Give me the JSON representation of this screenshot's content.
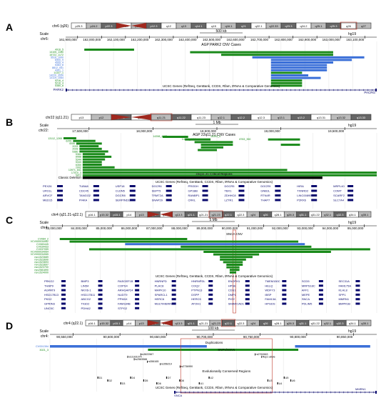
{
  "panels": [
    {
      "letter": "A",
      "ideogram": {
        "chrom_label": "chr6 (q26)",
        "bands": [
          "p25.3",
          "p24.2",
          "p22.3",
          "p21.33",
          "p21.1",
          "p12.3",
          "q12",
          "q13",
          "q14.1",
          "q15",
          "q16.1",
          "q21",
          "q22.1",
          "q22.33",
          "q23.3",
          "q24.2",
          "q25.1",
          "q25.3",
          "q26",
          "q27"
        ],
        "region_index": 18
      },
      "scale_text": "500 kb",
      "assembly": "hg19",
      "ticks": [
        "161,900,000",
        "162,000,000",
        "162,100,000",
        "162,200,000",
        "162,300,000",
        "162,400,000",
        "162,500,000",
        "162,600,000",
        "162,700,000",
        "162,800,000",
        "162,900,000",
        "163,000,000",
        "163,100,000"
      ],
      "track_title": "AGP PARK2 CNV Cases",
      "labels": [
        "4916_5",
        "14105_1180",
        "15722_1172",
        "5516_1000",
        "6300_9",
        "4555_4",
        "5383_8",
        "8812_051",
        "4301_1",
        "11337_1",
        "14220_3530",
        "13119_1064",
        "5216_4",
        "5216_4",
        "5380_8"
      ],
      "gene_track_title": "UCSC Genes (RefSeq, GenBank, CCDS, Rfam, tRNAs & Comparative Genomics)",
      "genes": [
        "PARK2",
        "PACRG"
      ]
    },
    {
      "letter": "B",
      "ideogram": {
        "chrom_label": "chr22 (q11.21)",
        "bands": [
          "p13",
          "p12",
          "p11.2",
          "q11.1",
          "q11.21",
          "q11.22",
          "q11.23",
          "q12.1",
          "q12.2",
          "q12.3",
          "q13.1",
          "q13.2",
          "q13.31",
          "q13.32",
          "q13.33"
        ],
        "region_index": 4
      },
      "scale_text": "1 Mb",
      "assembly": "hg19",
      "ticks": [
        "17,500,000",
        "18,000,000",
        "18,500,000",
        "19,000,000",
        "19,500,000"
      ],
      "track_title": "AGP 22q11.21 CNV Cases",
      "labels": [
        "13112_1265",
        "6255",
        "4006",
        "2033",
        "2028",
        "5380",
        "5384",
        "8088",
        "5344",
        "5343",
        "6350",
        "2002",
        "13971_841",
        "17010_3",
        "5012"
      ],
      "label_top": [
        "14398_4470",
        "14327_4410",
        "16393_5",
        "8763_350"
      ],
      "region_label": "22q11.21 Critical Regions",
      "classic_label": "Classic Deletion",
      "gene_track_title": "UCSC Genes (RefSeq, GenBank, CCDS, Rfam, tRNAs & Comparative Genomics)",
      "genes": [
        "PEX26",
        "TUBA8",
        "USP18",
        "DGCR6",
        "PRODH",
        "DGCR5",
        "DGCR9",
        "HIRA",
        "MRPL40",
        "UFD1L",
        "CDC45",
        "CLDN5",
        "SEPT5",
        "GP1BB",
        "TBX1",
        "GNB1L",
        "TXNRD2",
        "COMT",
        "ARVCF",
        "TANGO2",
        "DGCR8",
        "TRMT2A",
        "RANBP1",
        "ZDHHC8",
        "RTN4R",
        "LINC00895",
        "SCARF2",
        "MED15",
        "PI4KA",
        "SERPIND1",
        "SNAP29",
        "CRKL",
        "LZTR1",
        "THAP7",
        "P2RX6",
        "SLC7A4"
      ]
    },
    {
      "letter": "C",
      "ideogram": {
        "chrom_label": "chr4 (q21.21-q22.1)",
        "bands": [
          "p16.1",
          "p15.32",
          "p15.1",
          "p14",
          "p13",
          "q12",
          "q13.1",
          "q13.3",
          "q21.1",
          "q21.21",
          "q21.23",
          "q22.1",
          "q22.3",
          "q24",
          "q26",
          "q28.1",
          "q28.3",
          "q31.1",
          "q31.22",
          "q32.1",
          "q32.3",
          "q34.1",
          "q35.1"
        ],
        "region_index": 10
      },
      "scale_text": "5 Mb",
      "assembly": "hg19",
      "ticks": [
        "83,000,000",
        "84,000,000",
        "85,000,000",
        "86,000,000",
        "87,000,000",
        "88,000,000",
        "89,000,000",
        "90,000,000",
        "91,000,000",
        "92,000,000",
        "93,000,000",
        "94,000,000",
        "95,000,000"
      ],
      "track_title": "SNCA CNV",
      "labels": [
        "CV084_2",
        "VCV000034062",
        "CV083445",
        "CV034433",
        "CV037059",
        "VCV000034064",
        "VCV000034065",
        "nsv1523689",
        "nsv1523690",
        "nsv1523693",
        "nsv1523697",
        "nsv1523700",
        "nsv2581890",
        "nsv1524000"
      ],
      "gene_track_title": "UCSC Genes (RefSeq, GenBank, CCDS, Rfam, tRNAs & Comparative Genomics)",
      "genes": [
        "PRKG2",
        "BMP3",
        "RASGEF1B",
        "HNRNPD",
        "HNRNPDL",
        "ENOPH1",
        "TMEM150C",
        "SCD5",
        "SEC31A",
        "THAP9",
        "LIN54",
        "COPS4",
        "PLAC8",
        "COQ2",
        "HPSE",
        "HELQ",
        "MRPS18C",
        "FAM175A",
        "AGPAT9",
        "NKX6-1",
        "ARHGAP24",
        "MAPK10",
        "PTPN13",
        "CDS1",
        "WDFY3",
        "AFF1",
        "KLHL8",
        "HSD17B13",
        "HSD17B11",
        "NUDT9",
        "SPARCL1",
        "DSPP",
        "DMP1",
        "IBSP",
        "MEPE",
        "SPP1",
        "PKD2",
        "ABCG2",
        "PPM1K",
        "HERC6",
        "HERC5",
        "PIGY",
        "FAM13A",
        "SNCA",
        "MMRN1",
        "GPRIN3",
        "TIGD2",
        "FAM184B",
        "MULTIMERIN",
        "ATOH1",
        "SMARCAD1",
        "HPGDS",
        "PDLIM5",
        "BMPR1B",
        "UNC5C",
        "PDHA2",
        "STPG2"
      ]
    },
    {
      "letter": "D",
      "ideogram": {
        "chrom_label": "chr4 (q22.1)",
        "bands": [
          "p16.1",
          "p15.32",
          "p15.1",
          "p14",
          "p13",
          "q12",
          "q13.1",
          "q13.3",
          "q21.1",
          "q21.21",
          "q21.23",
          "q22.1",
          "q22.3",
          "q24",
          "q26",
          "q28.1",
          "q28.3",
          "q31.1",
          "q31.22",
          "q32.1",
          "q32.3",
          "q34.1",
          "q35.1"
        ],
        "region_index": 11
      },
      "scale_text": "100 kb",
      "assembly": "hg19",
      "ticks": [
        "90,550,000",
        "90,600,000",
        "90,650,000",
        "90,700,000",
        "90,750,000",
        "90,800,000",
        "90,850,000"
      ],
      "track_title": "Duplications",
      "labels": [
        "CV001394",
        "3021_3"
      ],
      "snp_title": "SNPs/SSVs",
      "snps": [
        "rs3822567",
        "rs11931074",
        "rs2583988",
        "rs356165",
        "rs356219",
        "rs2736990",
        "rs2762663",
        "Rep1 allele"
      ],
      "cons_title": "Evolutionarily Conserved Regions",
      "cons_labels": [
        "D1",
        "D2",
        "D3",
        "D4",
        "D5",
        "D6",
        "D7",
        "D8",
        "U1",
        "U2",
        "U3",
        "U4",
        "U5",
        "U6"
      ],
      "gene_track_title": "UCSC Genes (RefSeq, GenBank, CCDS, Rfam, tRNAs & Comparative Genomics)",
      "genes": [
        "SNCA",
        "MMRN1"
      ]
    }
  ],
  "colors": {
    "green": "#1a8a1a",
    "blue": "#3a6fd8",
    "black": "#000000",
    "gene": "#0a0a6e",
    "label_green": "#1b8c1b",
    "highlight": "#c0392b",
    "centromere": "#a0281e"
  }
}
